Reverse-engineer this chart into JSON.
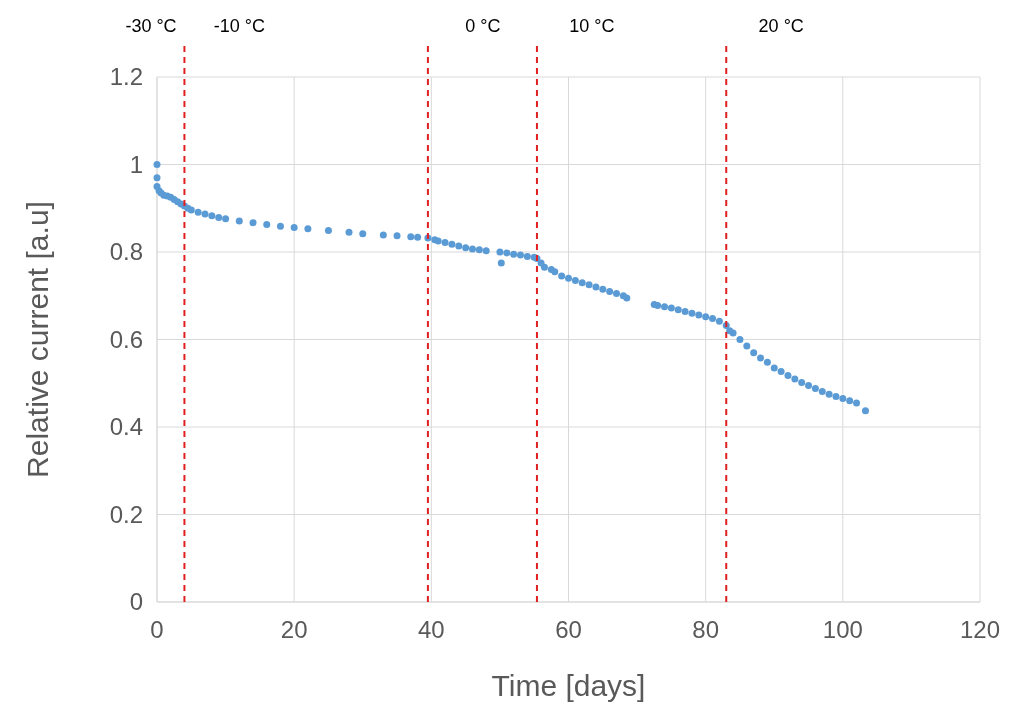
{
  "chart_data": {
    "type": "scatter",
    "xlabel": "Time [days]",
    "ylabel": "Relative current [a.u]",
    "xlim": [
      0,
      120
    ],
    "xticks": [
      0,
      20,
      40,
      60,
      80,
      100,
      120
    ],
    "ylim": [
      0,
      1.2
    ],
    "yticks": [
      0,
      0.2,
      0.4,
      0.6,
      0.8,
      1,
      1.2
    ],
    "grid": true,
    "marker": "circle",
    "series": [
      {
        "color": "#5b9bd5",
        "x": [
          0,
          0,
          0,
          0.3,
          0.6,
          1,
          1.5,
          2,
          2.5,
          3,
          3.5,
          4,
          4.5,
          5,
          6,
          7,
          8,
          9,
          10,
          12,
          14,
          16,
          18,
          20,
          22,
          25,
          28,
          30,
          33,
          35,
          37,
          38,
          39.5,
          40.5,
          41,
          42,
          43,
          44,
          45,
          46,
          47,
          48,
          50,
          50.2,
          51,
          52,
          53,
          54,
          55,
          55.4,
          56,
          56.5,
          57.5,
          58,
          59,
          60,
          61,
          62,
          63,
          64,
          65,
          66,
          67,
          68,
          68.5,
          72.5,
          73,
          74,
          75,
          76,
          77,
          78,
          79,
          80,
          81,
          82,
          83,
          83.5,
          84,
          85,
          86,
          87,
          88,
          89,
          90,
          91,
          92,
          93,
          94,
          95,
          96,
          97,
          98,
          99,
          100,
          101,
          102,
          103.3
        ],
        "values": [
          1.0,
          0.97,
          0.95,
          0.94,
          0.935,
          0.93,
          0.928,
          0.925,
          0.92,
          0.915,
          0.91,
          0.905,
          0.9,
          0.896,
          0.891,
          0.887,
          0.883,
          0.879,
          0.876,
          0.871,
          0.867,
          0.863,
          0.859,
          0.856,
          0.853,
          0.849,
          0.845,
          0.842,
          0.839,
          0.837,
          0.835,
          0.834,
          0.832,
          0.828,
          0.825,
          0.822,
          0.818,
          0.814,
          0.81,
          0.807,
          0.805,
          0.803,
          0.8,
          0.775,
          0.798,
          0.795,
          0.793,
          0.79,
          0.788,
          0.785,
          0.775,
          0.765,
          0.76,
          0.755,
          0.745,
          0.74,
          0.735,
          0.73,
          0.725,
          0.72,
          0.715,
          0.71,
          0.705,
          0.7,
          0.695,
          0.68,
          0.678,
          0.675,
          0.672,
          0.668,
          0.664,
          0.66,
          0.656,
          0.652,
          0.648,
          0.642,
          0.632,
          0.62,
          0.615,
          0.6,
          0.585,
          0.57,
          0.558,
          0.548,
          0.535,
          0.527,
          0.518,
          0.51,
          0.502,
          0.495,
          0.488,
          0.481,
          0.475,
          0.47,
          0.465,
          0.46,
          0.455,
          0.437
        ]
      }
    ],
    "ref_lines": [
      {
        "axis": "x",
        "value": 4,
        "color": "#e02020",
        "line_style": "dashed",
        "label": "-10 °C"
      },
      {
        "axis": "x",
        "value": 39.5,
        "color": "#e02020",
        "line_style": "dashed",
        "label": "0 °C"
      },
      {
        "axis": "x",
        "value": 55.4,
        "color": "#e02020",
        "line_style": "dashed",
        "label": "10 °C"
      },
      {
        "axis": "x",
        "value": 83,
        "color": "#e02020",
        "line_style": "dashed",
        "label": "20 °C"
      }
    ],
    "annotations": [
      "-30 °C"
    ]
  }
}
